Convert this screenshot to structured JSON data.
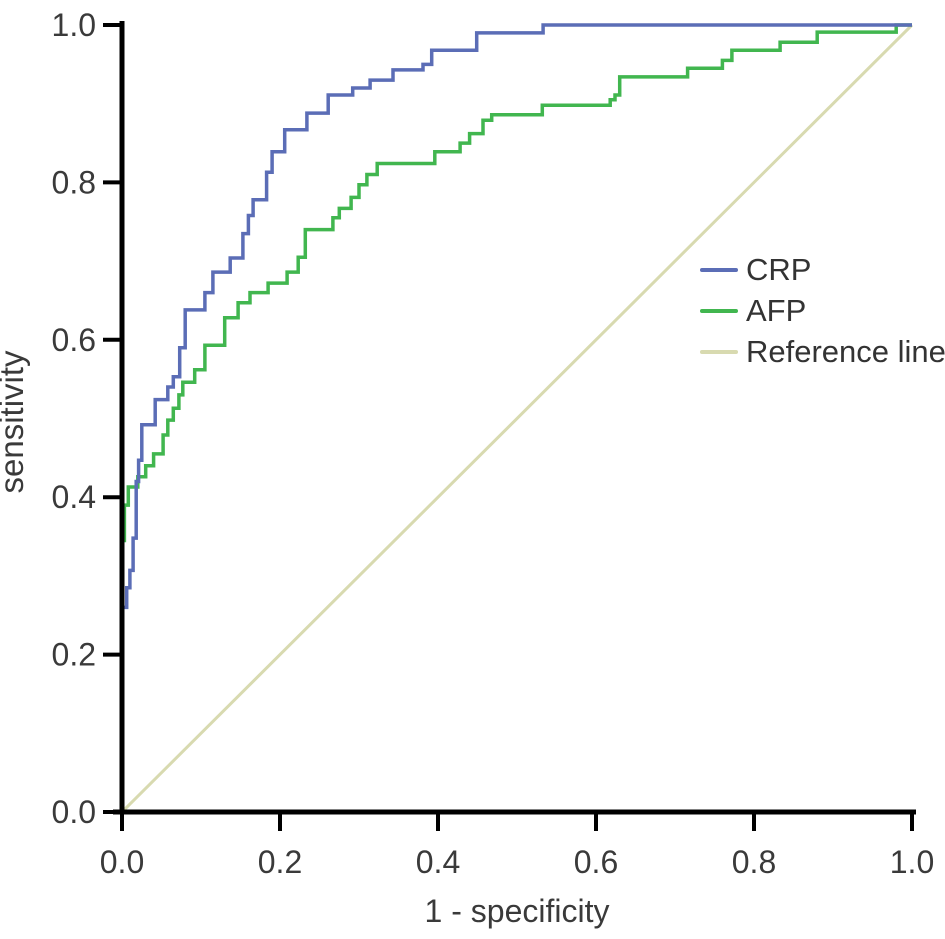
{
  "figure": {
    "background": "#ffffff",
    "axis_color": "#000000",
    "text_color": "#3a3a3a"
  },
  "chart_data": {
    "type": "line",
    "subtype": "roc-step-curves",
    "title": "",
    "xlabel": "1 - specificity",
    "ylabel": "sensitivity",
    "xlim": [
      0.0,
      1.0
    ],
    "ylim": [
      0.0,
      1.0
    ],
    "x_ticks": [
      "0.0",
      "0.2",
      "0.4",
      "0.6",
      "0.8",
      "1.0"
    ],
    "y_ticks": [
      "0.0",
      "0.2",
      "0.4",
      "0.6",
      "0.8",
      "1.0"
    ],
    "grid": false,
    "legend_position": "middle-right",
    "series": [
      {
        "name": "CRP",
        "color": "#5b6db6",
        "style": "step",
        "points": [
          [
            0,
            0
          ],
          [
            0,
            0.26
          ],
          [
            0.006,
            0.26
          ],
          [
            0.006,
            0.285
          ],
          [
            0.01,
            0.285
          ],
          [
            0.01,
            0.307
          ],
          [
            0.014,
            0.307
          ],
          [
            0.014,
            0.348
          ],
          [
            0.018,
            0.348
          ],
          [
            0.018,
            0.42
          ],
          [
            0.021,
            0.42
          ],
          [
            0.021,
            0.447
          ],
          [
            0.025,
            0.447
          ],
          [
            0.025,
            0.492
          ],
          [
            0.042,
            0.492
          ],
          [
            0.042,
            0.524
          ],
          [
            0.058,
            0.524
          ],
          [
            0.058,
            0.54
          ],
          [
            0.065,
            0.54
          ],
          [
            0.065,
            0.553
          ],
          [
            0.073,
            0.553
          ],
          [
            0.073,
            0.59
          ],
          [
            0.08,
            0.59
          ],
          [
            0.08,
            0.638
          ],
          [
            0.105,
            0.638
          ],
          [
            0.105,
            0.66
          ],
          [
            0.115,
            0.66
          ],
          [
            0.115,
            0.686
          ],
          [
            0.137,
            0.686
          ],
          [
            0.137,
            0.704
          ],
          [
            0.153,
            0.704
          ],
          [
            0.153,
            0.735
          ],
          [
            0.16,
            0.735
          ],
          [
            0.16,
            0.758
          ],
          [
            0.166,
            0.758
          ],
          [
            0.166,
            0.778
          ],
          [
            0.183,
            0.778
          ],
          [
            0.183,
            0.813
          ],
          [
            0.19,
            0.813
          ],
          [
            0.19,
            0.839
          ],
          [
            0.206,
            0.839
          ],
          [
            0.206,
            0.867
          ],
          [
            0.234,
            0.867
          ],
          [
            0.234,
            0.888
          ],
          [
            0.261,
            0.888
          ],
          [
            0.261,
            0.911
          ],
          [
            0.292,
            0.911
          ],
          [
            0.292,
            0.92
          ],
          [
            0.314,
            0.92
          ],
          [
            0.314,
            0.93
          ],
          [
            0.343,
            0.93
          ],
          [
            0.343,
            0.943
          ],
          [
            0.381,
            0.943
          ],
          [
            0.381,
            0.95
          ],
          [
            0.392,
            0.95
          ],
          [
            0.392,
            0.968
          ],
          [
            0.449,
            0.968
          ],
          [
            0.449,
            0.99
          ],
          [
            0.533,
            0.99
          ],
          [
            0.533,
            1.0
          ],
          [
            1.0,
            1.0
          ]
        ]
      },
      {
        "name": "AFP",
        "color": "#41b64f",
        "style": "step",
        "points": [
          [
            0,
            0
          ],
          [
            0,
            0.345
          ],
          [
            0.003,
            0.345
          ],
          [
            0.003,
            0.39
          ],
          [
            0.008,
            0.39
          ],
          [
            0.008,
            0.413
          ],
          [
            0.02,
            0.413
          ],
          [
            0.02,
            0.426
          ],
          [
            0.03,
            0.426
          ],
          [
            0.03,
            0.44
          ],
          [
            0.04,
            0.44
          ],
          [
            0.04,
            0.455
          ],
          [
            0.052,
            0.455
          ],
          [
            0.052,
            0.479
          ],
          [
            0.058,
            0.479
          ],
          [
            0.058,
            0.498
          ],
          [
            0.065,
            0.498
          ],
          [
            0.065,
            0.513
          ],
          [
            0.072,
            0.513
          ],
          [
            0.072,
            0.53
          ],
          [
            0.077,
            0.53
          ],
          [
            0.077,
            0.546
          ],
          [
            0.092,
            0.546
          ],
          [
            0.092,
            0.562
          ],
          [
            0.105,
            0.562
          ],
          [
            0.105,
            0.593
          ],
          [
            0.13,
            0.593
          ],
          [
            0.13,
            0.628
          ],
          [
            0.147,
            0.628
          ],
          [
            0.147,
            0.647
          ],
          [
            0.162,
            0.647
          ],
          [
            0.162,
            0.66
          ],
          [
            0.185,
            0.66
          ],
          [
            0.185,
            0.672
          ],
          [
            0.209,
            0.672
          ],
          [
            0.209,
            0.686
          ],
          [
            0.223,
            0.686
          ],
          [
            0.223,
            0.705
          ],
          [
            0.232,
            0.705
          ],
          [
            0.232,
            0.74
          ],
          [
            0.267,
            0.74
          ],
          [
            0.267,
            0.755
          ],
          [
            0.275,
            0.755
          ],
          [
            0.275,
            0.767
          ],
          [
            0.29,
            0.767
          ],
          [
            0.29,
            0.781
          ],
          [
            0.3,
            0.781
          ],
          [
            0.3,
            0.797
          ],
          [
            0.31,
            0.797
          ],
          [
            0.31,
            0.81
          ],
          [
            0.323,
            0.81
          ],
          [
            0.323,
            0.824
          ],
          [
            0.396,
            0.824
          ],
          [
            0.396,
            0.839
          ],
          [
            0.428,
            0.839
          ],
          [
            0.428,
            0.85
          ],
          [
            0.44,
            0.85
          ],
          [
            0.44,
            0.862
          ],
          [
            0.457,
            0.862
          ],
          [
            0.457,
            0.879
          ],
          [
            0.468,
            0.879
          ],
          [
            0.468,
            0.886
          ],
          [
            0.532,
            0.886
          ],
          [
            0.532,
            0.898
          ],
          [
            0.618,
            0.898
          ],
          [
            0.618,
            0.905
          ],
          [
            0.624,
            0.905
          ],
          [
            0.624,
            0.911
          ],
          [
            0.63,
            0.911
          ],
          [
            0.63,
            0.934
          ],
          [
            0.716,
            0.934
          ],
          [
            0.716,
            0.945
          ],
          [
            0.76,
            0.945
          ],
          [
            0.76,
            0.955
          ],
          [
            0.772,
            0.955
          ],
          [
            0.772,
            0.968
          ],
          [
            0.833,
            0.968
          ],
          [
            0.833,
            0.978
          ],
          [
            0.88,
            0.978
          ],
          [
            0.88,
            0.991
          ],
          [
            0.98,
            0.991
          ],
          [
            0.98,
            1.0
          ],
          [
            1.0,
            1.0
          ]
        ]
      },
      {
        "name": "Reference line",
        "color": "#d8dab0",
        "style": "line",
        "points": [
          [
            0,
            0
          ],
          [
            1,
            1
          ]
        ]
      }
    ]
  }
}
